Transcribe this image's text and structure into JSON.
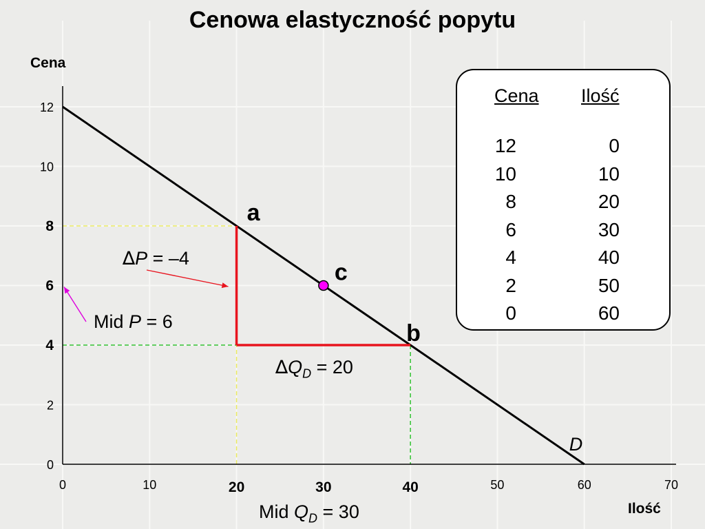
{
  "title": "Cenowa elastyczność popytu",
  "colors": {
    "background": "#ececea",
    "curve": "#000000",
    "delta": "#e8141e",
    "guide_upper": "#eaea60",
    "guide_lower": "#30c030",
    "midpoint_fill": "#ff00ff",
    "arrow_p": "#e8141e",
    "arrow_mid": "#dd00dd"
  },
  "chart_data": {
    "type": "line",
    "title": "Cenowa elastyczność popytu",
    "xlabel": "Ilość",
    "ylabel": "Cena",
    "xlim": [
      0,
      70
    ],
    "ylim": [
      0,
      12
    ],
    "x_ticks": [
      0,
      10,
      20,
      30,
      40,
      50,
      60,
      70
    ],
    "y_ticks": [
      0,
      2,
      4,
      6,
      8,
      10,
      12
    ],
    "x_ticks_emphasized": [
      20,
      30,
      40
    ],
    "y_ticks_emphasized": [
      4,
      6,
      8
    ],
    "grid": true,
    "series": [
      {
        "name": "D",
        "x": [
          0,
          60
        ],
        "y": [
          12,
          0
        ]
      }
    ],
    "points": [
      {
        "label": "a",
        "x": 20,
        "y": 8
      },
      {
        "label": "b",
        "x": 40,
        "y": 4
      },
      {
        "label": "c",
        "x": 30,
        "y": 6
      }
    ],
    "table": {
      "headers": [
        "Cena",
        "Ilość"
      ],
      "rows": [
        [
          12,
          0
        ],
        [
          10,
          10
        ],
        [
          8,
          20
        ],
        [
          6,
          30
        ],
        [
          4,
          40
        ],
        [
          2,
          50
        ],
        [
          0,
          60
        ]
      ]
    }
  }
}
